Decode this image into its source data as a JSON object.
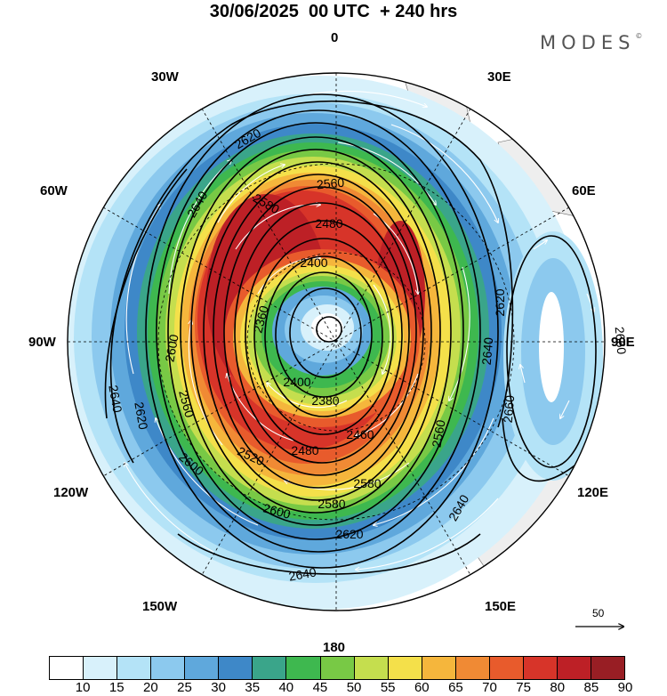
{
  "title": "30/06/2025  00 UTC  + 240 hrs",
  "brand": "MODES",
  "brand_mark": "©",
  "meridian_labels": {
    "m0": "0",
    "m30e": "30E",
    "m60e": "60E",
    "m90e": "90E",
    "m120e": "120E",
    "m150e": "150E",
    "m180": "180",
    "m150w": "150W",
    "m120w": "120W",
    "m90w": "90W",
    "m60w": "60W",
    "m30w": "30W"
  },
  "contour_labels": {
    "c1": "2620",
    "c2": "2640",
    "c3": "2560",
    "c4": "2580",
    "c5": "2480",
    "c6": "2400",
    "c7": "2600",
    "c8": "2380",
    "c9": "2400",
    "c10": "2460",
    "c11": "2480",
    "c12": "2520",
    "c13": "2560",
    "c14": "2580",
    "c15": "2600",
    "c16": "2620",
    "c17": "2640",
    "c18": "2640",
    "c19": "2620",
    "c20": "2660",
    "c21": "2660",
    "c22": "2640",
    "c23": "2640",
    "c24": "2600",
    "c25": "2560",
    "c26": "2580",
    "c27": "2620",
    "c28": "2360"
  },
  "vector_reference": "50",
  "colorbar": {
    "colors": [
      "#ffffff",
      "#d8f1fb",
      "#b4e3f7",
      "#8cc9ee",
      "#5fa8dc",
      "#3e88c8",
      "#3aa58a",
      "#3eb84f",
      "#78c945",
      "#c5de4e",
      "#f4e04a",
      "#f5b63c",
      "#f08a34",
      "#e85b2c",
      "#d73429",
      "#bd2026",
      "#981e24"
    ],
    "ticks": [
      "10",
      "15",
      "20",
      "25",
      "30",
      "35",
      "40",
      "45",
      "50",
      "55",
      "60",
      "65",
      "70",
      "75",
      "80",
      "85",
      "90"
    ]
  }
}
